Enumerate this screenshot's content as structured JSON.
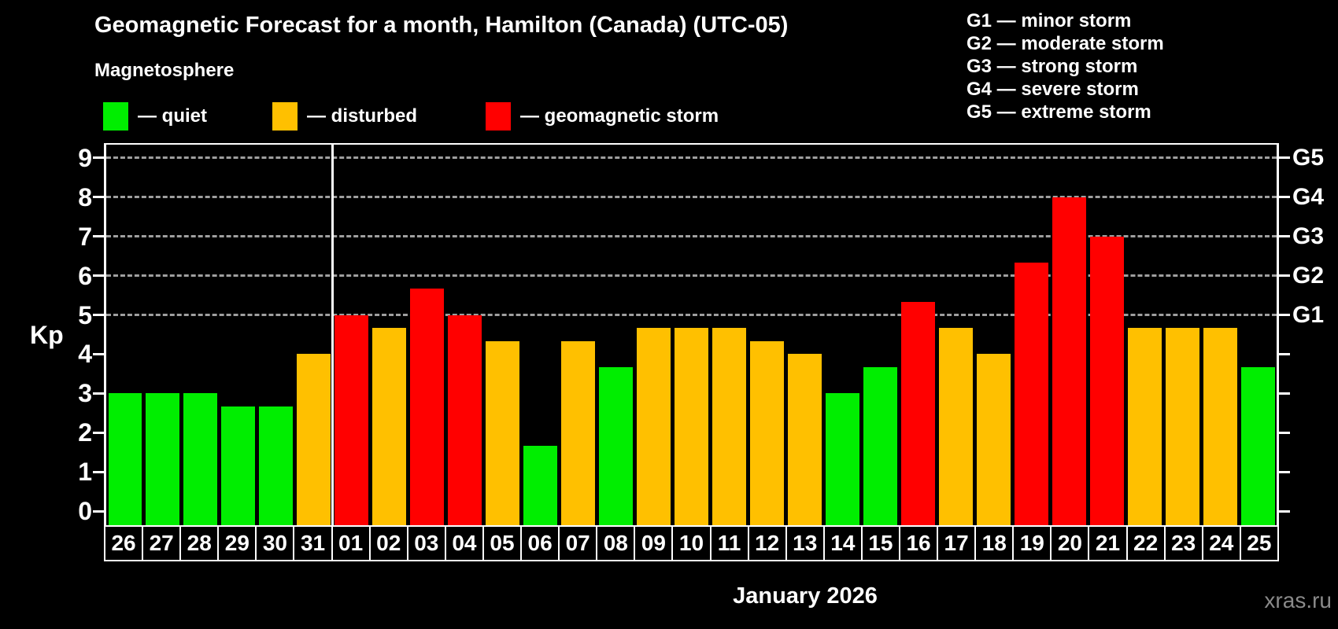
{
  "title": "Geomagnetic Forecast for a month, Hamilton (Canada) (UTC-05)",
  "watermark": "xras.ru",
  "legend": {
    "heading": "Magnetosphere",
    "items": [
      {
        "key": "quiet",
        "label": "— quiet",
        "color": "#00ee00"
      },
      {
        "key": "disturbed",
        "label": "— disturbed",
        "color": "#ffc000"
      },
      {
        "key": "storm",
        "label": "— geomagnetic storm",
        "color": "#ff0000"
      }
    ]
  },
  "g_legend": [
    "G1 — minor storm",
    "G2 — moderate storm",
    "G3 — strong storm",
    "G4 — severe storm",
    "G5 — extreme storm"
  ],
  "chart_data": {
    "type": "bar",
    "title": "Geomagnetic Forecast for a month, Hamilton (Canada) (UTC-05)",
    "subtitle": "Magnetosphere",
    "xlabel": "January 2026",
    "ylabel": "Kp",
    "ylim": [
      0,
      9
    ],
    "y_ticks": [
      0,
      1,
      2,
      3,
      4,
      5,
      6,
      7,
      8,
      9
    ],
    "gridlines_at": [
      5,
      6,
      7,
      8,
      9
    ],
    "grid": "horizontal dashed lines at storm levels G1-G5",
    "right_axis": {
      "G1": 5,
      "G2": 6,
      "G3": 7,
      "G4": 8,
      "G5": 9
    },
    "month_separator_after": "31",
    "categories": [
      "26",
      "27",
      "28",
      "29",
      "30",
      "31",
      "01",
      "02",
      "03",
      "04",
      "05",
      "06",
      "07",
      "08",
      "09",
      "10",
      "11",
      "12",
      "13",
      "14",
      "15",
      "16",
      "17",
      "18",
      "19",
      "20",
      "21",
      "22",
      "23",
      "24",
      "25"
    ],
    "values": [
      3,
      3,
      3,
      2.67,
      2.67,
      4,
      5,
      4.67,
      5.67,
      5,
      4.33,
      1.67,
      4.33,
      3.67,
      4.67,
      4.67,
      4.67,
      4.33,
      4,
      3,
      3.67,
      5.33,
      4.67,
      4,
      6.33,
      8,
      7,
      4.67,
      4.67,
      4.67,
      3.67
    ],
    "statuses": [
      "quiet",
      "quiet",
      "quiet",
      "quiet",
      "quiet",
      "disturbed",
      "storm",
      "disturbed",
      "storm",
      "storm",
      "disturbed",
      "quiet",
      "disturbed",
      "quiet",
      "disturbed",
      "disturbed",
      "disturbed",
      "disturbed",
      "disturbed",
      "quiet",
      "quiet",
      "storm",
      "disturbed",
      "disturbed",
      "storm",
      "storm",
      "storm",
      "disturbed",
      "disturbed",
      "disturbed",
      "quiet"
    ],
    "bar_colors": {
      "quiet": "#00ee00",
      "disturbed": "#ffc000",
      "storm": "#ff0000"
    }
  }
}
